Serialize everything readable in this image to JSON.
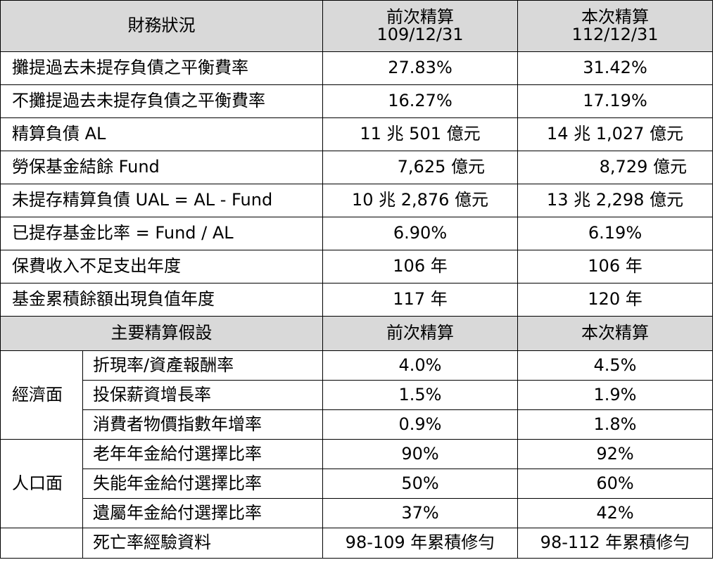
{
  "financial": {
    "header": {
      "label": "財務狀況",
      "prev_title": "前次精算",
      "prev_date": "109/12/31",
      "curr_title": "本次精算",
      "curr_date": "112/12/31"
    },
    "rows": [
      {
        "label": "攤提過去未提存負債之平衡費率",
        "prev": "27.83%",
        "curr": "31.42%"
      },
      {
        "label": "不攤提過去未提存負債之平衡費率",
        "prev": "16.27%",
        "curr": "17.19%"
      },
      {
        "label": "精算負債  AL",
        "prev": "11 兆 501 億元",
        "curr": "14 兆 1,027 億元"
      },
      {
        "label": "勞保基金結餘  Fund",
        "prev": "7,625 億元",
        "curr": "8,729 億元"
      },
      {
        "label": "未提存精算負債  UAL = AL - Fund",
        "prev": "10 兆 2,876 億元",
        "curr": "13 兆 2,298 億元"
      },
      {
        "label": "已提存基金比率 = Fund / AL",
        "prev": "6.90%",
        "curr": "6.19%"
      },
      {
        "label": "保費收入不足支出年度",
        "prev": "106 年",
        "curr": "106 年"
      },
      {
        "label": "基金累積餘額出現負值年度",
        "prev": "117 年",
        "curr": "120 年"
      }
    ]
  },
  "assumptions": {
    "header": {
      "label": "主要精算假設",
      "prev": "前次精算",
      "curr": "本次精算"
    },
    "economic": {
      "group": "經濟面",
      "rows": [
        {
          "label": "折現率/資產報酬率",
          "prev": "4.0%",
          "curr": "4.5%"
        },
        {
          "label": "投保薪資增長率",
          "prev": "1.5%",
          "curr": "1.9%"
        },
        {
          "label": "消費者物價指數年增率",
          "prev": "0.9%",
          "curr": "1.8%"
        }
      ]
    },
    "demographic": {
      "group": "人口面",
      "rows": [
        {
          "label": "老年年金給付選擇比率",
          "prev": "90%",
          "curr": "92%"
        },
        {
          "label": "失能年金給付選擇比率",
          "prev": "50%",
          "curr": "60%"
        },
        {
          "label": "遺屬年金給付選擇比率",
          "prev": "37%",
          "curr": "42%"
        },
        {
          "label": "死亡率經驗資料",
          "prev": "98-109 年累積修勻",
          "curr": "98-112 年累積修勻"
        }
      ]
    }
  }
}
